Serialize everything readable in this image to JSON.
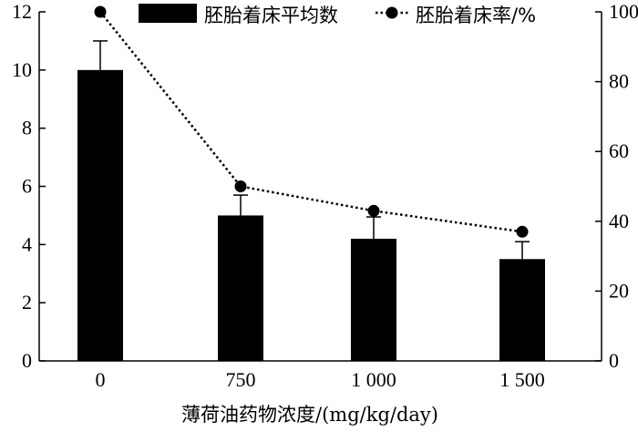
{
  "chart_data": {
    "type": "bar",
    "categories": [
      "0",
      "750",
      "1 000",
      "1 500"
    ],
    "xlabel": "薄荷油药物浓度/(mg/kg/day)",
    "ylabel": "",
    "y2label": "",
    "ylim": [
      0,
      12
    ],
    "y2lim": [
      0,
      100
    ],
    "yticks": [
      "0",
      "2",
      "4",
      "6",
      "8",
      "10",
      "12"
    ],
    "y2ticks": [
      "0",
      "20",
      "40",
      "60",
      "80",
      "100"
    ],
    "legend_position": "top",
    "grid": false,
    "series": [
      {
        "name": "胚胎着床平均数",
        "type": "bar",
        "axis": "left",
        "color": "#000000",
        "values": [
          10.0,
          5.0,
          4.2,
          3.5
        ],
        "error": [
          1.0,
          0.7,
          0.75,
          0.6
        ]
      },
      {
        "name": "胚胎着床率/%",
        "type": "line",
        "axis": "right",
        "color": "#000000",
        "line_style": "dotted",
        "marker": "circle",
        "values": [
          100,
          50,
          43,
          37
        ]
      }
    ]
  }
}
